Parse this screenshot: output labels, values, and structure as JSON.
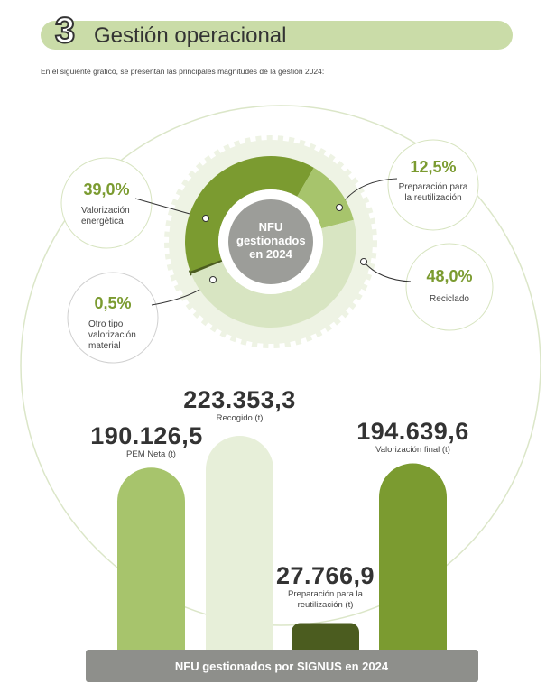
{
  "header": {
    "number": "3",
    "title": "Gestión operacional",
    "intro": "En el siguiente gráfico, se presentan las principales magnitudes de la gestión 2024:"
  },
  "chart_data": [
    {
      "type": "pie",
      "center_label": "NFU gestionados en 2024",
      "categories": [
        "Otro tipo valorización material",
        "Valorización energética",
        "Preparación para la reutilización",
        "Reciclado"
      ],
      "values": [
        0.5,
        39.0,
        12.5,
        48.0
      ],
      "value_labels": [
        "0,5%",
        "39,0%",
        "12,5%",
        "48,0%"
      ],
      "colors": [
        "#4b5c1f",
        "#7b9b30",
        "#a7c46c",
        "#d8e5c2"
      ]
    },
    {
      "type": "bar",
      "title": "NFU gestionados por SIGNUS en 2024",
      "categories": [
        "PEM Neta (t)",
        "Recogido (t)",
        "Preparación para la reutilización (t)",
        "Valorización final (t)"
      ],
      "values": [
        190126.5,
        223353.3,
        27766.9,
        194639.6
      ],
      "value_labels": [
        "190.126,5",
        "223.353,3",
        "27.766,9",
        "194.639,6"
      ],
      "colors": [
        "#a7c46c",
        "#e7efd9",
        "#4b5c1f",
        "#7b9b30"
      ]
    }
  ]
}
